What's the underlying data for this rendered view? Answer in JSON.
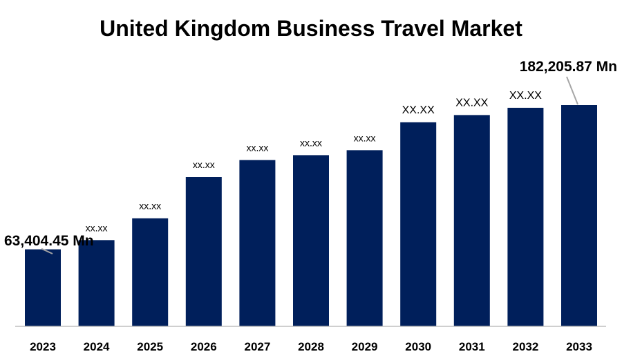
{
  "chart_data": {
    "type": "bar",
    "title": "United Kingdom Business Travel Market",
    "categories": [
      "2023",
      "2024",
      "2025",
      "2026",
      "2027",
      "2028",
      "2029",
      "2030",
      "2031",
      "2032",
      "2033"
    ],
    "values": [
      63404.45,
      71000,
      89000,
      123000,
      137000,
      141000,
      145000,
      168000,
      174000,
      180000,
      182205.87
    ],
    "data_labels": [
      "",
      "xx.xx",
      "xx.xx",
      "xx.xx",
      "xx.xx",
      "xx.xx",
      "xx.xx",
      "XX.XX",
      "XX.XX",
      "XX.XX",
      ""
    ],
    "callouts": {
      "first": "63,404.45 Mn",
      "last": "182,205.87 Mn"
    },
    "xlabel": "",
    "ylabel": "",
    "ylim": [
      0,
      182205.87
    ],
    "grid": false,
    "bar_color": "#001f5b",
    "axis_color": "#bfbfbf"
  }
}
